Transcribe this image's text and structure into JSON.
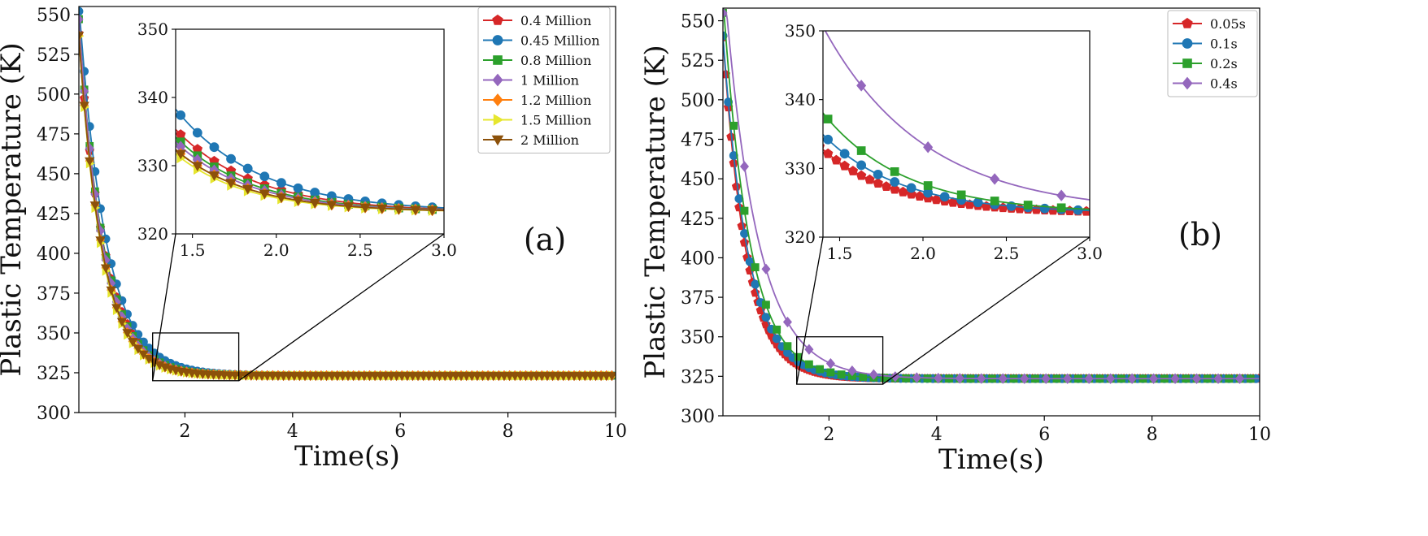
{
  "chart_data": [
    {
      "type": "line",
      "panel_label": "(a)",
      "xlabel": "Time(s)",
      "ylabel": "Plastic Temperature (K)",
      "xlim": [
        0.03,
        10
      ],
      "ylim": [
        300,
        555
      ],
      "xticks": [
        2,
        4,
        6,
        8,
        10
      ],
      "yticks": [
        300,
        325,
        350,
        375,
        400,
        425,
        450,
        475,
        500,
        525,
        550
      ],
      "legend_position": "top-right",
      "zoom_box": {
        "x": [
          1.4,
          3.0
        ],
        "y": [
          320,
          350
        ]
      },
      "inset": {
        "xlim": [
          1.4,
          3.0
        ],
        "ylim": [
          320,
          350
        ],
        "xticks": [
          1.5,
          2.0,
          2.5,
          3.0
        ],
        "yticks": [
          320,
          330,
          340,
          350
        ]
      },
      "series": [
        {
          "name": "0.4 Million",
          "color": "#d62728",
          "marker": "pentagon",
          "k": 2.1,
          "offset": 0.0,
          "mark_step": 0.1
        },
        {
          "name": "0.45 Million",
          "color": "#1f77b4",
          "marker": "circle",
          "k": 2.0,
          "offset": 0.04,
          "mark_step": 0.1
        },
        {
          "name": "0.8 Million",
          "color": "#2ca02c",
          "marker": "square",
          "k": 2.2,
          "offset": 0.02,
          "mark_step": 0.1
        },
        {
          "name": "1 Million",
          "color": "#9467bd",
          "marker": "diamond",
          "k": 2.25,
          "offset": 0.02,
          "mark_step": 0.1
        },
        {
          "name": "1.2 Million",
          "color": "#ff7f0e",
          "marker": "diamond",
          "k": 2.3,
          "offset": 0.0,
          "mark_step": 0.1
        },
        {
          "name": "1.5 Million",
          "color": "#e6e62e",
          "marker": "triangle-right",
          "k": 2.35,
          "offset": 0.0,
          "mark_step": 0.1
        },
        {
          "name": "2 Million",
          "color": "#8c510a",
          "marker": "triangle-down",
          "k": 2.3,
          "offset": 0.0,
          "mark_step": 0.1
        }
      ],
      "model": {
        "T0": 552,
        "T_inf": 323.2
      }
    },
    {
      "type": "line",
      "panel_label": "(b)",
      "xlabel": "Time(s)",
      "ylabel": "Plastic Temperature (K)",
      "xlim": [
        0.03,
        10
      ],
      "ylim": [
        300,
        558
      ],
      "xticks": [
        2,
        4,
        6,
        8,
        10
      ],
      "yticks": [
        300,
        325,
        350,
        375,
        400,
        425,
        450,
        475,
        500,
        525,
        550
      ],
      "legend_position": "top-right",
      "zoom_box": {
        "x": [
          1.4,
          3.0
        ],
        "y": [
          320,
          350
        ]
      },
      "inset": {
        "xlim": [
          1.4,
          3.0
        ],
        "ylim": [
          320,
          350
        ],
        "xticks": [
          1.5,
          2.0,
          2.5,
          3.0
        ],
        "yticks": [
          320,
          330,
          340,
          350
        ]
      },
      "series": [
        {
          "name": "0.05s",
          "color": "#d62728",
          "marker": "pentagon",
          "k": 2.3,
          "offset": 0.0,
          "mark_step": 0.05
        },
        {
          "name": "0.1s",
          "color": "#1f77b4",
          "marker": "circle",
          "k": 2.15,
          "offset": 0.0,
          "mark_step": 0.1
        },
        {
          "name": "0.2s",
          "color": "#2ca02c",
          "marker": "square",
          "k": 2.05,
          "offset": 0.05,
          "mark_step": 0.2
        },
        {
          "name": "0.4s",
          "color": "#9467bd",
          "marker": "diamond",
          "k": 1.65,
          "offset": 0.1,
          "mark_step": 0.4
        }
      ],
      "model": {
        "T0": 555,
        "T_inf": 323.5
      }
    }
  ]
}
